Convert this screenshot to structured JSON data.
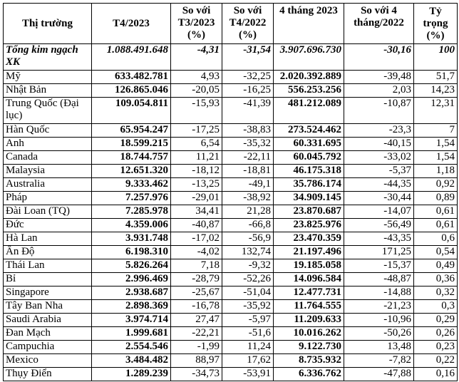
{
  "headers": [
    "Thị trường",
    "T4/2023",
    "So với T3/2023 (%)",
    "So với T4/2022 (%)",
    "4 tháng 2023",
    "So với 4 tháng/2022",
    "Tỷ trọng (%)"
  ],
  "total": {
    "market": "Tổng kim ngạch XK",
    "t4_2023": "1.088.491.648",
    "vs_t3_2023": "-4,31",
    "vs_t4_2022": "-31,54",
    "four_months_2023": "3.907.696.730",
    "vs_4m_2022": "-30,16",
    "share": "100"
  },
  "rows": [
    {
      "market": "Mỹ",
      "t4_2023": "633.482.781",
      "vs_t3_2023": "4,93",
      "vs_t4_2022": "-32,25",
      "four_months_2023": "2.020.392.889",
      "vs_4m_2022": "-39,48",
      "share": "51,7"
    },
    {
      "market": "Nhật Bản",
      "t4_2023": "126.865.046",
      "vs_t3_2023": "-20,05",
      "vs_t4_2022": "-16,25",
      "four_months_2023": "556.253.256",
      "vs_4m_2022": "2,03",
      "share": "14,23"
    },
    {
      "market": "Trung Quốc (Đại lục)",
      "t4_2023": "109.054.811",
      "vs_t3_2023": "-15,93",
      "vs_t4_2022": "-41,39",
      "four_months_2023": "481.212.089",
      "vs_4m_2022": "-10,87",
      "share": "12,31"
    },
    {
      "market": "Hàn Quốc",
      "t4_2023": "65.954.247",
      "vs_t3_2023": "-17,25",
      "vs_t4_2022": "-38,83",
      "four_months_2023": "273.524.462",
      "vs_4m_2022": "-23,3",
      "share": "7"
    },
    {
      "market": "Anh",
      "t4_2023": "18.599.215",
      "vs_t3_2023": "6,54",
      "vs_t4_2022": "-35,32",
      "four_months_2023": "60.331.695",
      "vs_4m_2022": "-40,15",
      "share": "1,54"
    },
    {
      "market": "Canada",
      "t4_2023": "18.744.757",
      "vs_t3_2023": "11,21",
      "vs_t4_2022": "-22,11",
      "four_months_2023": "60.045.792",
      "vs_4m_2022": "-33,02",
      "share": "1,54"
    },
    {
      "market": "Malaysia",
      "t4_2023": "12.651.320",
      "vs_t3_2023": "-18,12",
      "vs_t4_2022": "-18,81",
      "four_months_2023": "46.175.318",
      "vs_4m_2022": "-5,37",
      "share": "1,18"
    },
    {
      "market": "Australia",
      "t4_2023": "9.333.462",
      "vs_t3_2023": "-13,25",
      "vs_t4_2022": "-49,1",
      "four_months_2023": "35.786.174",
      "vs_4m_2022": "-44,35",
      "share": "0,92"
    },
    {
      "market": "Pháp",
      "t4_2023": "7.257.976",
      "vs_t3_2023": "-29,01",
      "vs_t4_2022": "-38,92",
      "four_months_2023": "34.909.145",
      "vs_4m_2022": "-30,44",
      "share": "0,89"
    },
    {
      "market": "Đài Loan (TQ)",
      "t4_2023": "7.285.978",
      "vs_t3_2023": "34,41",
      "vs_t4_2022": "21,28",
      "four_months_2023": "23.870.687",
      "vs_4m_2022": "-14,07",
      "share": "0,61"
    },
    {
      "market": "Đức",
      "t4_2023": "4.359.006",
      "vs_t3_2023": "-40,87",
      "vs_t4_2022": "-66,8",
      "four_months_2023": "23.825.976",
      "vs_4m_2022": "-56,49",
      "share": "0,61"
    },
    {
      "market": "Hà Lan",
      "t4_2023": "3.931.748",
      "vs_t3_2023": "-17,02",
      "vs_t4_2022": "-56,9",
      "four_months_2023": "23.470.359",
      "vs_4m_2022": "-43,35",
      "share": "0,6"
    },
    {
      "market": "Ấn Độ",
      "t4_2023": "6.198.310",
      "vs_t3_2023": "-4,02",
      "vs_t4_2022": "132,74",
      "four_months_2023": "21.197.496",
      "vs_4m_2022": "171,25",
      "share": "0,54"
    },
    {
      "market": "Thái Lan",
      "t4_2023": "5.826.264",
      "vs_t3_2023": "7,18",
      "vs_t4_2022": "-9,32",
      "four_months_2023": "19.185.058",
      "vs_4m_2022": "-15,37",
      "share": "0,49"
    },
    {
      "market": "Bỉ",
      "t4_2023": "2.996.469",
      "vs_t3_2023": "-28,79",
      "vs_t4_2022": "-52,26",
      "four_months_2023": "14.096.584",
      "vs_4m_2022": "-48,87",
      "share": "0,36"
    },
    {
      "market": "Singapore",
      "t4_2023": "2.938.687",
      "vs_t3_2023": "-25,67",
      "vs_t4_2022": "-51,04",
      "four_months_2023": "12.477.731",
      "vs_4m_2022": "-14,88",
      "share": "0,32"
    },
    {
      "market": "Tây Ban Nha",
      "t4_2023": "2.898.369",
      "vs_t3_2023": "-16,78",
      "vs_t4_2022": "-35,92",
      "four_months_2023": "11.764.555",
      "vs_4m_2022": "-21,23",
      "share": "0,3"
    },
    {
      "market": "Saudi Arabia",
      "t4_2023": "3.974.714",
      "vs_t3_2023": "27,47",
      "vs_t4_2022": "-5,97",
      "four_months_2023": "11.209.633",
      "vs_4m_2022": "-10,96",
      "share": "0,29"
    },
    {
      "market": "Đan Mạch",
      "t4_2023": "1.999.681",
      "vs_t3_2023": "-22,21",
      "vs_t4_2022": "-51,6",
      "four_months_2023": "10.016.262",
      "vs_4m_2022": "-50,26",
      "share": "0,26"
    },
    {
      "market": "Campuchia",
      "t4_2023": "2.554.546",
      "vs_t3_2023": "-1,99",
      "vs_t4_2022": "11,24",
      "four_months_2023": "9.122.730",
      "vs_4m_2022": "13,48",
      "share": "0,23"
    },
    {
      "market": "Mexico",
      "t4_2023": "3.484.482",
      "vs_t3_2023": "88,97",
      "vs_t4_2022": "17,62",
      "four_months_2023": "8.735.932",
      "vs_4m_2022": "-7,82",
      "share": "0,22"
    },
    {
      "market": "Thụy Điển",
      "t4_2023": "1.289.239",
      "vs_t3_2023": "-34,73",
      "vs_t4_2022": "-53,91",
      "four_months_2023": "6.336.762",
      "vs_4m_2022": "-47,88",
      "share": "0,16"
    }
  ]
}
